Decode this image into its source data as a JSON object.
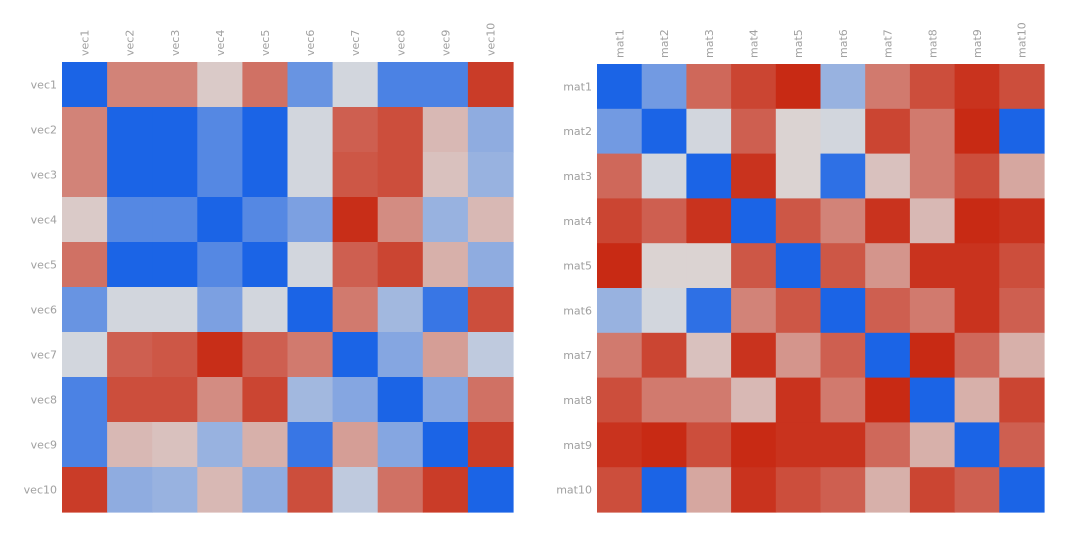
{
  "colors": {
    "low": "#1b64e6",
    "mid": "#dcdcdc",
    "high": "#c82a14",
    "tick_text": "#a0a0a0"
  },
  "chart_data": [
    {
      "type": "heatmap",
      "x_labels": [
        "vec1",
        "vec2",
        "vec3",
        "vec4",
        "vec5",
        "vec6",
        "vec7",
        "vec8",
        "vec9",
        "vec10"
      ],
      "y_labels": [
        "vec1",
        "vec2",
        "vec3",
        "vec4",
        "vec5",
        "vec6",
        "vec7",
        "vec8",
        "vec9",
        "vec10"
      ],
      "x_axis_position": "top",
      "legend": "none",
      "grid": false,
      "color_range": [
        -1,
        1
      ],
      "values": [
        [
          -1.0,
          0.5,
          0.5,
          0.1,
          0.6,
          -0.6,
          -0.05,
          -0.75,
          -0.75,
          0.9
        ],
        [
          0.5,
          -1.0,
          -1.0,
          -0.7,
          -1.0,
          -0.05,
          0.7,
          0.8,
          0.2,
          -0.4
        ],
        [
          0.5,
          -1.0,
          -1.0,
          -0.7,
          -1.0,
          -0.05,
          0.75,
          0.8,
          0.15,
          -0.35
        ],
        [
          0.1,
          -0.7,
          -0.7,
          -1.0,
          -0.7,
          -0.5,
          0.98,
          0.45,
          -0.35,
          0.2
        ],
        [
          0.6,
          -1.0,
          -1.0,
          -0.7,
          -1.0,
          -0.05,
          0.7,
          0.85,
          0.25,
          -0.4
        ],
        [
          -0.6,
          -0.05,
          -0.05,
          -0.5,
          -0.05,
          -1.0,
          0.55,
          -0.3,
          -0.85,
          0.8
        ],
        [
          -0.05,
          0.7,
          0.75,
          0.98,
          0.7,
          0.55,
          -1.0,
          -0.45,
          0.35,
          -0.15
        ],
        [
          -0.75,
          0.8,
          0.8,
          0.45,
          0.85,
          -0.3,
          -0.45,
          -1.0,
          -0.45,
          0.6
        ],
        [
          -0.75,
          0.2,
          0.15,
          -0.35,
          0.25,
          -0.85,
          0.35,
          -0.45,
          -1.0,
          0.9
        ],
        [
          0.9,
          -0.4,
          -0.35,
          0.2,
          -0.4,
          0.8,
          -0.15,
          0.6,
          0.9,
          -1.0
        ]
      ]
    },
    {
      "type": "heatmap",
      "x_labels": [
        "mat1",
        "mat2",
        "mat3",
        "mat4",
        "mat5",
        "mat6",
        "mat7",
        "mat8",
        "mat9",
        "mat10"
      ],
      "y_labels": [
        "mat1",
        "mat2",
        "mat3",
        "mat4",
        "mat5",
        "mat6",
        "mat7",
        "mat8",
        "mat9",
        "mat10"
      ],
      "x_axis_position": "top",
      "legend": "none",
      "grid": false,
      "color_range": [
        -1,
        1
      ],
      "values": [
        [
          -1.0,
          -0.55,
          0.65,
          0.85,
          1.0,
          -0.35,
          0.55,
          0.8,
          0.95,
          0.8
        ],
        [
          -0.55,
          -1.0,
          -0.05,
          0.7,
          0.05,
          -0.05,
          0.85,
          0.55,
          1.0,
          -1.0
        ],
        [
          0.65,
          -0.05,
          -1.0,
          0.95,
          0.05,
          -0.9,
          0.15,
          0.55,
          0.8,
          0.3
        ],
        [
          0.85,
          0.7,
          0.95,
          -1.0,
          0.75,
          0.5,
          0.95,
          0.2,
          1.0,
          0.95
        ],
        [
          1.0,
          0.05,
          0.05,
          0.75,
          -1.0,
          0.75,
          0.4,
          0.95,
          0.95,
          0.8
        ],
        [
          -0.35,
          -0.05,
          -0.9,
          0.5,
          0.75,
          -1.0,
          0.7,
          0.55,
          0.95,
          0.7
        ],
        [
          0.55,
          0.85,
          0.15,
          0.95,
          0.4,
          0.7,
          -1.0,
          1.0,
          0.65,
          0.25
        ],
        [
          0.8,
          0.55,
          0.55,
          0.2,
          0.95,
          0.55,
          1.0,
          -1.0,
          0.25,
          0.85
        ],
        [
          0.95,
          1.0,
          0.8,
          1.0,
          0.95,
          0.95,
          0.65,
          0.25,
          -1.0,
          0.7
        ],
        [
          0.8,
          -1.0,
          0.3,
          0.95,
          0.8,
          0.7,
          0.25,
          0.85,
          0.7,
          -1.0
        ]
      ]
    }
  ]
}
